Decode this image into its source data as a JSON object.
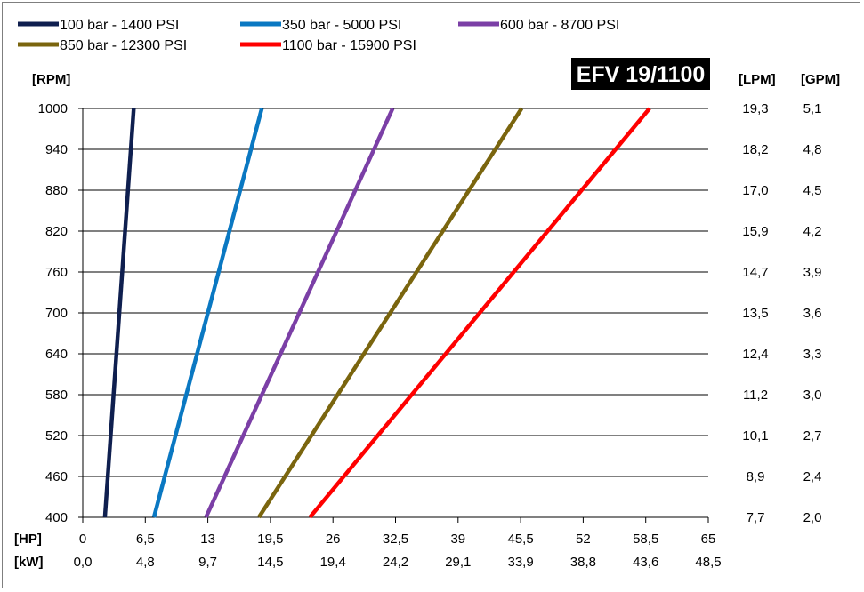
{
  "chart_data": {
    "type": "line",
    "title": "EFV 19/1100",
    "ylabel": "[RPM]",
    "xlabel_hp": "[HP]",
    "xlabel_kw": "[kW]",
    "right_label_lpm": "[LPM]",
    "right_label_gpm": "[GPM]",
    "xlim": [
      0,
      65
    ],
    "ylim": [
      400,
      1000
    ],
    "grid": "horizontal",
    "legend_position": "top",
    "x_ticks_hp": [
      "0",
      "6,5",
      "13",
      "19,5",
      "26",
      "32,5",
      "39",
      "45,5",
      "52",
      "58,5",
      "65"
    ],
    "x_ticks_kw": [
      "0,0",
      "4,8",
      "9,7",
      "14,5",
      "19,4",
      "24,2",
      "29,1",
      "33,9",
      "38,8",
      "43,6",
      "48,5"
    ],
    "y_ticks": [
      "1000",
      "940",
      "880",
      "820",
      "760",
      "700",
      "640",
      "580",
      "520",
      "460",
      "400"
    ],
    "lpm_ticks": [
      "19,3",
      "18,2",
      "17,0",
      "15,9",
      "14,7",
      "13,5",
      "12,4",
      "11,2",
      "10,1",
      "8,9",
      "7,7"
    ],
    "gpm_ticks": [
      "5,1",
      "4,8",
      "4,5",
      "4,2",
      "3,9",
      "3,6",
      "3,3",
      "3,0",
      "2,7",
      "2,4",
      "2,0"
    ],
    "series": [
      {
        "name": "100 bar - 1400 PSI",
        "color": "#0f1f4f",
        "points": [
          [
            2.3,
            400
          ],
          [
            5.3,
            1000
          ]
        ]
      },
      {
        "name": "350 bar - 5000 PSI",
        "color": "#0a78c2",
        "points": [
          [
            7.4,
            400
          ],
          [
            18.6,
            1000
          ]
        ]
      },
      {
        "name": "600 bar - 8700 PSI",
        "color": "#7b3fa6",
        "points": [
          [
            12.8,
            400
          ],
          [
            32.2,
            1000
          ]
        ]
      },
      {
        "name": "850 bar - 12300 PSI",
        "color": "#7a650e",
        "points": [
          [
            18.3,
            400
          ],
          [
            45.6,
            1000
          ]
        ]
      },
      {
        "name": "1100 bar - 15900 PSI",
        "color": "#ff0000",
        "points": [
          [
            23.6,
            400
          ],
          [
            58.9,
            1000
          ]
        ]
      }
    ]
  }
}
